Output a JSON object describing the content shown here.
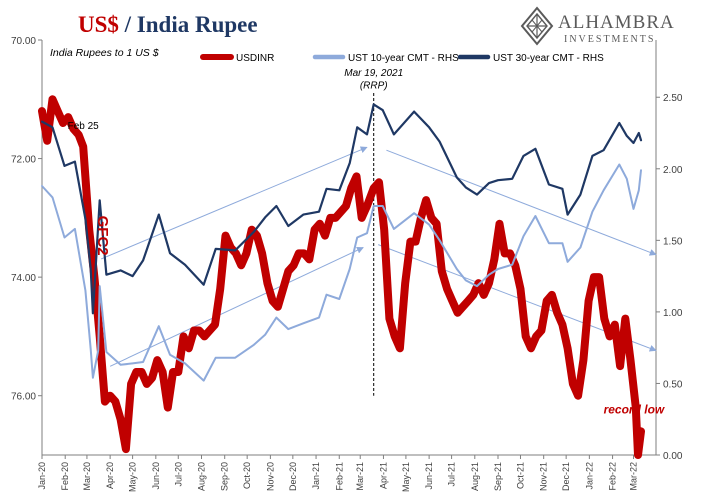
{
  "header": {
    "title_main": "US$",
    "title_sep": " / ",
    "title_rest": "India Rupee"
  },
  "logo": {
    "name": "ALHAMBRA",
    "sub": "INVESTMENTS"
  },
  "colors": {
    "usdinr": "#c00000",
    "ust10": "#8eaadb",
    "ust30": "#1f3864",
    "title_red": "#c00000",
    "title_navy": "#1f3864",
    "annotation_red": "#c00000",
    "axis": "#7f7f7f",
    "arrow": "#8eaadb"
  },
  "chart_data": {
    "type": "line",
    "subtitle": "India Rupees to 1 US $",
    "y_left": {
      "range": [
        70.0,
        77.0
      ],
      "inverted": true,
      "ticks": [
        "70.00",
        "72.00",
        "74.00",
        "76.00"
      ]
    },
    "y_right": {
      "range": [
        0.0,
        2.9
      ],
      "ticks": [
        "0.00",
        "0.50",
        "1.00",
        "1.50",
        "2.00",
        "2.50"
      ]
    },
    "x_range": [
      "2020-01-01",
      "2022-03-31"
    ],
    "x_ticks": [
      "Jan-20",
      "Feb-20",
      "Mar-20",
      "Apr-20",
      "May-20",
      "Jun-20",
      "Jul-20",
      "Aug-20",
      "Sep-20",
      "Oct-20",
      "Nov-20",
      "Dec-20",
      "Jan-21",
      "Feb-21",
      "Mar-21",
      "Apr-21",
      "May-21",
      "Jun-21",
      "Jul-21",
      "Aug-21",
      "Sep-21",
      "Oct-21",
      "Nov-21",
      "Dec-21",
      "Jan-22",
      "Feb-22",
      "Mar-22"
    ],
    "legend": [
      "USDINR",
      "UST 10-year CMT - RHS",
      "UST 30-year CMT - RHS"
    ],
    "grid": false,
    "series": [
      {
        "name": "USDINR",
        "axis": "left",
        "points": [
          [
            "2020-01-01",
            71.2
          ],
          [
            "2020-01-08",
            71.7
          ],
          [
            "2020-01-15",
            71.0
          ],
          [
            "2020-01-22",
            71.2
          ],
          [
            "2020-01-29",
            71.4
          ],
          [
            "2020-02-05",
            71.3
          ],
          [
            "2020-02-12",
            71.5
          ],
          [
            "2020-02-19",
            71.6
          ],
          [
            "2020-02-25",
            71.8
          ],
          [
            "2020-03-04",
            73.2
          ],
          [
            "2020-03-11",
            74.0
          ],
          [
            "2020-03-18",
            75.0
          ],
          [
            "2020-03-25",
            76.1
          ],
          [
            "2020-04-01",
            76.0
          ],
          [
            "2020-04-08",
            76.1
          ],
          [
            "2020-04-15",
            76.4
          ],
          [
            "2020-04-22",
            76.9
          ],
          [
            "2020-04-29",
            75.8
          ],
          [
            "2020-05-06",
            75.6
          ],
          [
            "2020-05-13",
            75.6
          ],
          [
            "2020-05-20",
            75.8
          ],
          [
            "2020-05-27",
            75.7
          ],
          [
            "2020-06-03",
            75.4
          ],
          [
            "2020-06-10",
            75.6
          ],
          [
            "2020-06-17",
            76.2
          ],
          [
            "2020-06-24",
            75.6
          ],
          [
            "2020-07-01",
            75.6
          ],
          [
            "2020-07-08",
            75.0
          ],
          [
            "2020-07-15",
            75.2
          ],
          [
            "2020-07-22",
            74.9
          ],
          [
            "2020-07-29",
            74.9
          ],
          [
            "2020-08-05",
            75.0
          ],
          [
            "2020-08-12",
            74.9
          ],
          [
            "2020-08-19",
            74.8
          ],
          [
            "2020-08-26",
            74.2
          ],
          [
            "2020-09-02",
            73.3
          ],
          [
            "2020-09-09",
            73.5
          ],
          [
            "2020-09-16",
            73.6
          ],
          [
            "2020-09-23",
            73.8
          ],
          [
            "2020-09-30",
            73.6
          ],
          [
            "2020-10-07",
            73.2
          ],
          [
            "2020-10-14",
            73.3
          ],
          [
            "2020-10-21",
            73.6
          ],
          [
            "2020-10-28",
            74.1
          ],
          [
            "2020-11-04",
            74.4
          ],
          [
            "2020-11-11",
            74.5
          ],
          [
            "2020-11-18",
            74.2
          ],
          [
            "2020-11-25",
            73.9
          ],
          [
            "2020-12-02",
            73.8
          ],
          [
            "2020-12-09",
            73.6
          ],
          [
            "2020-12-16",
            73.6
          ],
          [
            "2020-12-23",
            73.7
          ],
          [
            "2020-12-30",
            73.2
          ],
          [
            "2021-01-06",
            73.1
          ],
          [
            "2021-01-13",
            73.3
          ],
          [
            "2021-01-20",
            73.0
          ],
          [
            "2021-01-27",
            73.0
          ],
          [
            "2021-02-03",
            72.9
          ],
          [
            "2021-02-10",
            72.8
          ],
          [
            "2021-02-17",
            72.5
          ],
          [
            "2021-02-24",
            72.3
          ],
          [
            "2021-03-03",
            73.0
          ],
          [
            "2021-03-10",
            72.8
          ],
          [
            "2021-03-19",
            72.5
          ],
          [
            "2021-03-26",
            72.4
          ],
          [
            "2021-04-02",
            73.2
          ],
          [
            "2021-04-09",
            74.7
          ],
          [
            "2021-04-16",
            75.0
          ],
          [
            "2021-04-23",
            75.2
          ],
          [
            "2021-04-30",
            74.1
          ],
          [
            "2021-05-07",
            73.4
          ],
          [
            "2021-05-14",
            73.4
          ],
          [
            "2021-05-21",
            73.0
          ],
          [
            "2021-05-28",
            72.7
          ],
          [
            "2021-06-04",
            73.0
          ],
          [
            "2021-06-11",
            73.1
          ],
          [
            "2021-06-18",
            73.9
          ],
          [
            "2021-06-25",
            74.2
          ],
          [
            "2021-07-02",
            74.4
          ],
          [
            "2021-07-09",
            74.6
          ],
          [
            "2021-07-16",
            74.5
          ],
          [
            "2021-07-23",
            74.4
          ],
          [
            "2021-07-30",
            74.3
          ],
          [
            "2021-08-06",
            74.1
          ],
          [
            "2021-08-13",
            74.3
          ],
          [
            "2021-08-20",
            74.1
          ],
          [
            "2021-08-27",
            73.7
          ],
          [
            "2021-09-03",
            73.1
          ],
          [
            "2021-09-10",
            73.6
          ],
          [
            "2021-09-17",
            73.6
          ],
          [
            "2021-09-24",
            73.8
          ],
          [
            "2021-10-01",
            74.2
          ],
          [
            "2021-10-08",
            75.0
          ],
          [
            "2021-10-15",
            75.2
          ],
          [
            "2021-10-22",
            75.0
          ],
          [
            "2021-10-29",
            74.9
          ],
          [
            "2021-11-05",
            74.4
          ],
          [
            "2021-11-12",
            74.3
          ],
          [
            "2021-11-19",
            74.6
          ],
          [
            "2021-11-26",
            74.8
          ],
          [
            "2021-12-03",
            75.2
          ],
          [
            "2021-12-10",
            75.8
          ],
          [
            "2021-12-17",
            76.0
          ],
          [
            "2021-12-24",
            75.4
          ],
          [
            "2021-12-31",
            74.4
          ],
          [
            "2022-01-07",
            74.0
          ],
          [
            "2022-01-14",
            74.0
          ],
          [
            "2022-01-21",
            74.7
          ],
          [
            "2022-01-28",
            75.0
          ],
          [
            "2022-02-04",
            74.8
          ],
          [
            "2022-02-11",
            75.5
          ],
          [
            "2022-02-18",
            74.7
          ],
          [
            "2022-02-25",
            75.4
          ],
          [
            "2022-03-04",
            76.2
          ],
          [
            "2022-03-07",
            77.0
          ],
          [
            "2022-03-11",
            76.6
          ]
        ]
      },
      {
        "name": "UST 10-year CMT - RHS",
        "axis": "right",
        "points": [
          [
            "2020-01-01",
            1.88
          ],
          [
            "2020-01-15",
            1.8
          ],
          [
            "2020-01-31",
            1.52
          ],
          [
            "2020-02-14",
            1.58
          ],
          [
            "2020-02-28",
            1.15
          ],
          [
            "2020-03-06",
            0.74
          ],
          [
            "2020-03-09",
            0.54
          ],
          [
            "2020-03-16",
            0.73
          ],
          [
            "2020-03-18",
            1.18
          ],
          [
            "2020-03-27",
            0.72
          ],
          [
            "2020-04-15",
            0.63
          ],
          [
            "2020-05-01",
            0.64
          ],
          [
            "2020-05-15",
            0.65
          ],
          [
            "2020-06-05",
            0.9
          ],
          [
            "2020-06-20",
            0.7
          ],
          [
            "2020-07-10",
            0.64
          ],
          [
            "2020-08-04",
            0.52
          ],
          [
            "2020-08-20",
            0.68
          ],
          [
            "2020-09-15",
            0.68
          ],
          [
            "2020-10-10",
            0.77
          ],
          [
            "2020-10-25",
            0.84
          ],
          [
            "2020-11-09",
            0.96
          ],
          [
            "2020-11-25",
            0.88
          ],
          [
            "2020-12-15",
            0.92
          ],
          [
            "2021-01-05",
            0.96
          ],
          [
            "2021-01-15",
            1.12
          ],
          [
            "2021-02-01",
            1.09
          ],
          [
            "2021-02-15",
            1.3
          ],
          [
            "2021-02-25",
            1.52
          ],
          [
            "2021-03-10",
            1.55
          ],
          [
            "2021-03-19",
            1.74
          ],
          [
            "2021-03-31",
            1.74
          ],
          [
            "2021-04-15",
            1.58
          ],
          [
            "2021-05-12",
            1.69
          ],
          [
            "2021-06-01",
            1.61
          ],
          [
            "2021-06-15",
            1.5
          ],
          [
            "2021-07-08",
            1.3
          ],
          [
            "2021-07-20",
            1.22
          ],
          [
            "2021-08-04",
            1.18
          ],
          [
            "2021-08-20",
            1.26
          ],
          [
            "2021-09-01",
            1.3
          ],
          [
            "2021-09-20",
            1.33
          ],
          [
            "2021-10-05",
            1.53
          ],
          [
            "2021-10-21",
            1.67
          ],
          [
            "2021-11-08",
            1.48
          ],
          [
            "2021-11-26",
            1.48
          ],
          [
            "2021-12-03",
            1.35
          ],
          [
            "2021-12-20",
            1.45
          ],
          [
            "2022-01-05",
            1.7
          ],
          [
            "2022-01-20",
            1.85
          ],
          [
            "2022-02-10",
            2.03
          ],
          [
            "2022-02-20",
            1.93
          ],
          [
            "2022-03-01",
            1.72
          ],
          [
            "2022-03-08",
            1.85
          ],
          [
            "2022-03-11",
            1.99
          ]
        ]
      },
      {
        "name": "UST 30-year CMT - RHS",
        "axis": "right",
        "points": [
          [
            "2020-01-01",
            2.33
          ],
          [
            "2020-01-15",
            2.29
          ],
          [
            "2020-01-31",
            2.02
          ],
          [
            "2020-02-14",
            2.05
          ],
          [
            "2020-02-28",
            1.65
          ],
          [
            "2020-03-06",
            1.3
          ],
          [
            "2020-03-09",
            0.99
          ],
          [
            "2020-03-18",
            1.78
          ],
          [
            "2020-03-27",
            1.26
          ],
          [
            "2020-04-15",
            1.29
          ],
          [
            "2020-05-01",
            1.25
          ],
          [
            "2020-05-15",
            1.36
          ],
          [
            "2020-06-05",
            1.68
          ],
          [
            "2020-06-20",
            1.41
          ],
          [
            "2020-07-10",
            1.33
          ],
          [
            "2020-08-04",
            1.19
          ],
          [
            "2020-08-20",
            1.44
          ],
          [
            "2020-09-15",
            1.43
          ],
          [
            "2020-10-10",
            1.56
          ],
          [
            "2020-10-25",
            1.66
          ],
          [
            "2020-11-09",
            1.74
          ],
          [
            "2020-11-25",
            1.6
          ],
          [
            "2020-12-15",
            1.68
          ],
          [
            "2021-01-05",
            1.7
          ],
          [
            "2021-01-15",
            1.86
          ],
          [
            "2021-02-01",
            1.85
          ],
          [
            "2021-02-15",
            2.04
          ],
          [
            "2021-02-25",
            2.29
          ],
          [
            "2021-03-10",
            2.24
          ],
          [
            "2021-03-19",
            2.45
          ],
          [
            "2021-03-31",
            2.41
          ],
          [
            "2021-04-15",
            2.24
          ],
          [
            "2021-05-12",
            2.4
          ],
          [
            "2021-06-01",
            2.29
          ],
          [
            "2021-06-15",
            2.19
          ],
          [
            "2021-07-08",
            1.94
          ],
          [
            "2021-07-20",
            1.87
          ],
          [
            "2021-08-04",
            1.82
          ],
          [
            "2021-08-20",
            1.9
          ],
          [
            "2021-09-01",
            1.92
          ],
          [
            "2021-09-20",
            1.93
          ],
          [
            "2021-10-05",
            2.09
          ],
          [
            "2021-10-21",
            2.14
          ],
          [
            "2021-11-08",
            1.89
          ],
          [
            "2021-11-26",
            1.86
          ],
          [
            "2021-12-03",
            1.68
          ],
          [
            "2021-12-20",
            1.82
          ],
          [
            "2022-01-05",
            2.09
          ],
          [
            "2022-01-20",
            2.13
          ],
          [
            "2022-02-10",
            2.32
          ],
          [
            "2022-02-20",
            2.23
          ],
          [
            "2022-03-01",
            2.18
          ],
          [
            "2022-03-08",
            2.25
          ],
          [
            "2022-03-11",
            2.2
          ]
        ]
      }
    ],
    "annotations": [
      {
        "text": "Feb 25",
        "date": "2020-02-25",
        "value": 71.5,
        "axis": "left",
        "color": "#000000",
        "style": "normal"
      },
      {
        "text": "GFC2",
        "date": "2020-03-16",
        "value": 73.3,
        "axis": "left",
        "color": "#c00000",
        "style": "bold-vertical"
      },
      {
        "text": "Mar 19, 2021",
        "date": "2021-03-19",
        "value": 2.65,
        "axis": "right",
        "color": "#000000",
        "style": "italic"
      },
      {
        "text": "(RRP)",
        "date": "2021-03-19",
        "value": 2.56,
        "axis": "right",
        "color": "#000000",
        "style": "italic"
      },
      {
        "text": "record low",
        "date": "2022-01-20",
        "value": 76.3,
        "axis": "left",
        "color": "#c00000",
        "style": "bold-italic"
      }
    ]
  }
}
